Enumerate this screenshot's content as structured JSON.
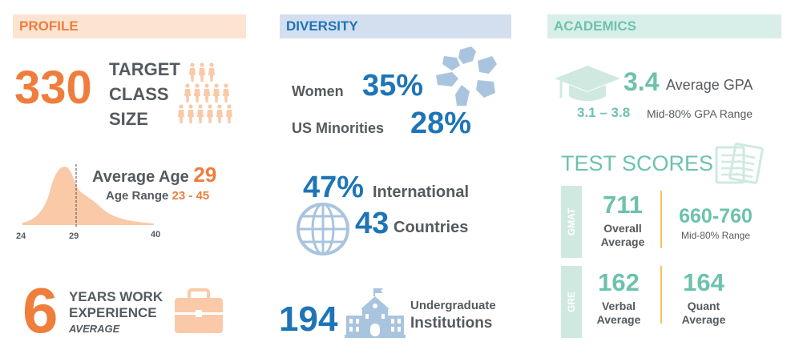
{
  "colors": {
    "orange": "#ef7d3c",
    "peach": "#f9c9a8",
    "blue": "#1e74b6",
    "lightblue": "#a9c4de",
    "teal": "#6cc2ad",
    "lightteal": "#cfe9e1",
    "gray": "#555a5e",
    "gold": "#f3c25a"
  },
  "profile": {
    "header": "PROFILE",
    "class_size": "330",
    "class_size_label": [
      "TARGET",
      "CLASS",
      "SIZE"
    ],
    "age": {
      "label": "Average Age",
      "value": "29",
      "range_label": "Age Range",
      "range_value": "23 - 45",
      "ticks": [
        "24",
        "29",
        "40"
      ]
    },
    "work": {
      "value": "6",
      "line1": "YEARS WORK",
      "line2": "EXPERIENCE",
      "line3": "AVERAGE"
    }
  },
  "diversity": {
    "header": "DIVERSITY",
    "women_label": "Women",
    "women_value": "35%",
    "minorities_label": "US Minorities",
    "minorities_value": "28%",
    "international_value": "47%",
    "international_label": "International",
    "countries_value": "43",
    "countries_label": "Countries",
    "institutions_value": "194",
    "institutions_line1": "Undergraduate",
    "institutions_line2": "Institutions"
  },
  "academics": {
    "header": "ACADEMICS",
    "gpa_value": "3.4",
    "gpa_label": "Average GPA",
    "gpa_range_value": "3.1 – 3.8",
    "gpa_range_label": "Mid-80% GPA Range",
    "test_scores_title": "TEST SCORES",
    "gmat": {
      "tag": "GMAT",
      "overall_value": "711",
      "overall_label1": "Overall",
      "overall_label2": "Average",
      "range_value": "660-760",
      "range_label": "Mid-80% Range"
    },
    "gre": {
      "tag": "GRE",
      "verbal_value": "162",
      "verbal_label1": "Verbal",
      "verbal_label2": "Average",
      "quant_value": "164",
      "quant_label1": "Quant",
      "quant_label2": "Average"
    }
  }
}
